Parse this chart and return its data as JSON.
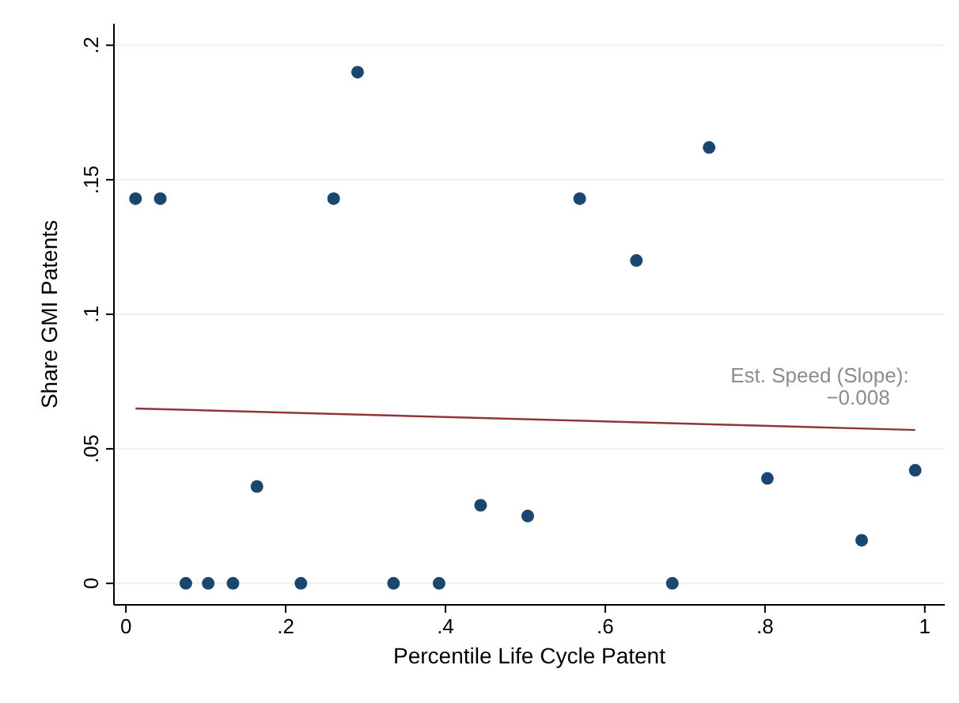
{
  "chart_data": {
    "type": "scatter",
    "xlabel": "Percentile Life Cycle Patent",
    "ylabel": "Share GMI Patents",
    "xlim": [
      -0.015,
      1.025
    ],
    "ylim": [
      -0.008,
      0.208
    ],
    "xticks": [
      0,
      {
        "value": 0.2,
        "label": ".2"
      },
      {
        "value": 0.4,
        "label": ".4"
      },
      {
        "value": 0.6,
        "label": ".6"
      },
      {
        "value": 0.8,
        "label": ".8"
      },
      1
    ],
    "yticks": [
      0,
      {
        "value": 0.05,
        "label": ".05"
      },
      {
        "value": 0.1,
        "label": ".1"
      },
      {
        "value": 0.15,
        "label": ".15"
      },
      {
        "value": 0.2,
        "label": ".2"
      }
    ],
    "grid": "y",
    "annotations": [
      "Est. Speed (Slope):\n−0.008"
    ],
    "series": [
      {
        "marker": "circle",
        "color": "#1a476f",
        "x": [
          0.012,
          0.043,
          0.075,
          0.103,
          0.134,
          0.164,
          0.219,
          0.26,
          0.29,
          0.335,
          0.392,
          0.444,
          0.503,
          0.568,
          0.639,
          0.684,
          0.73,
          0.803,
          0.921,
          0.988
        ],
        "values": [
          0.143,
          0.143,
          0,
          0,
          0,
          0.036,
          0,
          0.143,
          0.19,
          0,
          0,
          0.029,
          0.025,
          0.143,
          0.12,
          0,
          0.162,
          0.039,
          0.016,
          0.042
        ]
      },
      {
        "type": "line",
        "marker": "none",
        "color": "#90353b",
        "x": [
          0.012,
          0.988
        ],
        "values": [
          0.065,
          0.057
        ]
      }
    ]
  }
}
